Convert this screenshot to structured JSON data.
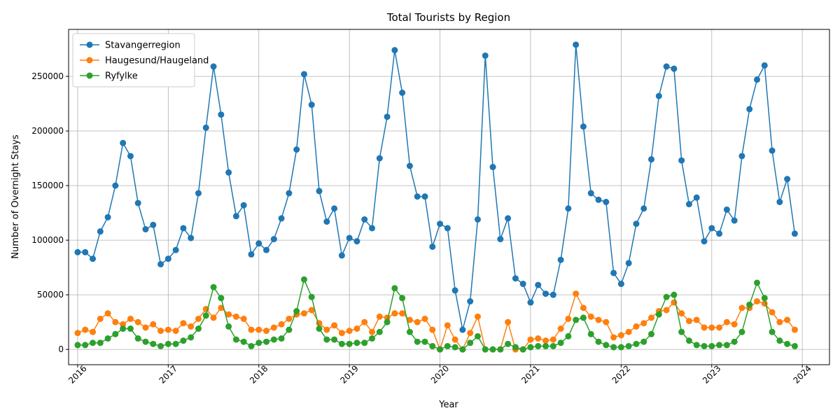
{
  "chart_data": {
    "type": "line",
    "title": "Total Tourists by Region",
    "xlabel": "Year",
    "ylabel": "Number of Overnight Stays",
    "xlim": [
      2015.9,
      2024.3
    ],
    "ylim": [
      -14000,
      293000
    ],
    "x_ticks": [
      "2016",
      "2017",
      "2018",
      "2019",
      "2020",
      "2021",
      "2022",
      "2023",
      "2024"
    ],
    "y_ticks": [
      "0",
      "50000",
      "100000",
      "150000",
      "200000",
      "250000"
    ],
    "grid": true,
    "legend": "top-left",
    "x_start": "2016-01",
    "x_step": "1 month",
    "series": [
      {
        "name": "Stavangerregion",
        "color": "#1f77b4",
        "values": [
          89000,
          89000,
          83000,
          108000,
          121000,
          150000,
          189000,
          177000,
          134000,
          110000,
          114000,
          78000,
          83000,
          91000,
          111000,
          102000,
          143000,
          203000,
          259000,
          215000,
          162000,
          122000,
          132000,
          87000,
          97000,
          91000,
          101000,
          120000,
          143000,
          183000,
          252000,
          224000,
          145000,
          117000,
          129000,
          86000,
          102000,
          99000,
          119000,
          111000,
          175000,
          213000,
          274000,
          235000,
          168000,
          140000,
          140000,
          94000,
          115000,
          111000,
          54000,
          18000,
          44000,
          119000,
          269000,
          167000,
          101000,
          120000,
          65000,
          60000,
          43000,
          59000,
          51000,
          50000,
          82000,
          129000,
          279000,
          204000,
          143000,
          137000,
          135000,
          70000,
          60000,
          79000,
          115000,
          129000,
          174000,
          232000,
          259000,
          257000,
          173000,
          133000,
          139000,
          99000,
          111000,
          106000,
          128000,
          118000,
          177000,
          220000,
          247000,
          260000,
          182000,
          135000,
          156000,
          106000
        ]
      },
      {
        "name": "Haugesund/Haugeland",
        "color": "#ff7f0e",
        "values": [
          15000,
          18000,
          16000,
          28000,
          33000,
          25000,
          23000,
          28000,
          25000,
          20000,
          23000,
          17000,
          18000,
          17000,
          24000,
          21000,
          28000,
          37000,
          29000,
          38000,
          32000,
          30000,
          28000,
          18000,
          18000,
          17000,
          20000,
          23000,
          28000,
          32000,
          33000,
          36000,
          24000,
          18000,
          22000,
          15000,
          17000,
          19000,
          25000,
          16000,
          30000,
          29000,
          33000,
          33000,
          27000,
          25000,
          28000,
          18000,
          0,
          22000,
          9000,
          0,
          15000,
          30000,
          0,
          0,
          0,
          25000,
          0,
          0,
          9000,
          10000,
          8000,
          9000,
          19000,
          28000,
          51000,
          38000,
          30000,
          27000,
          25000,
          11000,
          13000,
          16000,
          21000,
          24000,
          29000,
          35000,
          36000,
          43000,
          33000,
          26000,
          27000,
          20000,
          20000,
          20000,
          25000,
          23000,
          38000,
          38000,
          44000,
          42000,
          34000,
          25000,
          27000,
          18000
        ]
      },
      {
        "name": "Ryfylke",
        "color": "#2ca02c",
        "values": [
          4000,
          4000,
          6000,
          6000,
          10000,
          14000,
          19000,
          19000,
          10000,
          7000,
          5000,
          3000,
          5000,
          5000,
          8000,
          11000,
          19000,
          31000,
          57000,
          47000,
          21000,
          9000,
          7000,
          3000,
          6000,
          7000,
          9000,
          10000,
          18000,
          35000,
          64000,
          48000,
          19000,
          9000,
          9000,
          5000,
          5000,
          6000,
          6000,
          10000,
          16000,
          25000,
          56000,
          47000,
          16000,
          7000,
          7000,
          3000,
          0,
          3000,
          2000,
          0,
          6000,
          12000,
          0,
          0,
          0,
          5000,
          2000,
          0,
          2000,
          3000,
          3000,
          3000,
          6000,
          12000,
          27000,
          29000,
          14000,
          7000,
          4000,
          2000,
          2000,
          3000,
          5000,
          7000,
          14000,
          32000,
          48000,
          50000,
          16000,
          8000,
          4000,
          3000,
          3000,
          4000,
          4000,
          7000,
          16000,
          41000,
          61000,
          47000,
          16000,
          8000,
          5000,
          3000
        ]
      }
    ]
  }
}
